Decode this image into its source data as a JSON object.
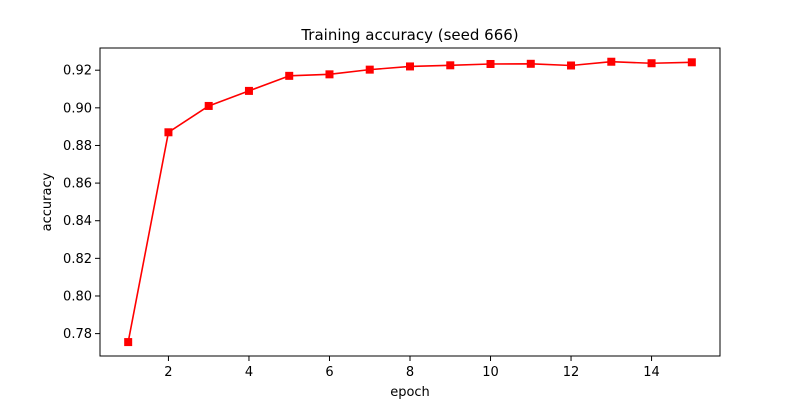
{
  "chart_data": {
    "type": "line",
    "title": "Training accuracy (seed 666)",
    "xlabel": "epoch",
    "ylabel": "accuracy",
    "x": [
      1,
      2,
      3,
      4,
      5,
      6,
      7,
      8,
      9,
      10,
      11,
      12,
      13,
      14,
      15
    ],
    "series": [
      {
        "values": [
          0.7755,
          0.887,
          0.901,
          0.909,
          0.917,
          0.9178,
          0.9203,
          0.922,
          0.9226,
          0.9233,
          0.9234,
          0.9225,
          0.9245,
          0.9237,
          0.9242
        ],
        "color": "#ff0000",
        "marker": "square"
      }
    ],
    "xlim": [
      0.3,
      15.7
    ],
    "ylim": [
      0.7681,
      0.9318
    ],
    "xticks": [
      2,
      4,
      6,
      8,
      10,
      12,
      14
    ],
    "xtick_labels": [
      "2",
      "4",
      "6",
      "8",
      "10",
      "12",
      "14"
    ],
    "yticks": [
      0.78,
      0.8,
      0.82,
      0.84,
      0.86,
      0.88,
      0.9,
      0.92
    ],
    "ytick_labels": [
      "0.78",
      "0.80",
      "0.82",
      "0.84",
      "0.86",
      "0.88",
      "0.90",
      "0.92"
    ],
    "grid": false,
    "legend": "none"
  }
}
